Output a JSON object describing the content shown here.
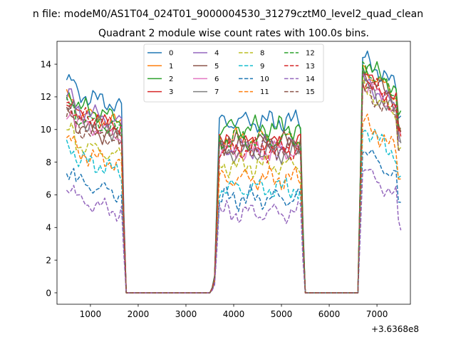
{
  "suptitle": "n file: modeM0/AS1T04_024T01_9000004530_31279cztM0_level2_quad_clean",
  "chart_data": {
    "type": "line",
    "title": "Quadrant 2 module wise count rates with 100.0s bins.",
    "xlabel": "",
    "ylabel": "",
    "x_offset_label": "+3.6368e8",
    "xlim": [
      300,
      7700
    ],
    "ylim": [
      -0.7,
      15.4
    ],
    "x_ticks": [
      1000,
      2000,
      3000,
      4000,
      5000,
      6000,
      7000
    ],
    "x_tick_labels": [
      "1000",
      "2000",
      "3000",
      "4000",
      "5000",
      "6000",
      "7000"
    ],
    "y_ticks": [
      0,
      2,
      4,
      6,
      8,
      10,
      12,
      14
    ],
    "y_tick_labels": [
      "0",
      "2",
      "4",
      "6",
      "8",
      "10",
      "12",
      "14"
    ],
    "legend_position": "upper center",
    "legend_columns": 4,
    "segments": [
      {
        "start": 500,
        "end": 1650
      },
      {
        "start": 3700,
        "end": 5400
      },
      {
        "start": 6700,
        "end": 7500
      }
    ],
    "gap_x": [
      1750,
      1800,
      1900,
      2000,
      2100,
      2200,
      2300,
      2400,
      2500,
      2600,
      2700,
      2800,
      2900,
      3000,
      3100,
      3200,
      3300,
      3400,
      3500,
      5500,
      5600,
      5700,
      5800,
      5900,
      6000,
      6100,
      6200,
      6300,
      6400,
      6500,
      6600
    ],
    "edge_points": [
      {
        "x": 1700,
        "fraction": 0.4
      },
      {
        "x": 3550,
        "fraction": 0.03
      },
      {
        "x": 3600,
        "fraction": 0.1
      },
      {
        "x": 3650,
        "fraction": 0.55
      },
      {
        "x": 5450,
        "fraction": 0.4
      },
      {
        "x": 6650,
        "fraction": 0.5
      }
    ],
    "series": [
      {
        "name": "0",
        "color": "#1f77b4",
        "dash": "solid",
        "levels": [
          12.4,
          10.5,
          13.8
        ]
      },
      {
        "name": "1",
        "color": "#ff7f0e",
        "dash": "solid",
        "levels": [
          11.3,
          9.4,
          13.2
        ]
      },
      {
        "name": "2",
        "color": "#2ca02c",
        "dash": "solid",
        "levels": [
          11.6,
          10.1,
          13.6
        ]
      },
      {
        "name": "3",
        "color": "#d62728",
        "dash": "solid",
        "levels": [
          11.1,
          9.1,
          12.8
        ]
      },
      {
        "name": "4",
        "color": "#9467bd",
        "dash": "solid",
        "levels": [
          11.4,
          8.9,
          12.5
        ]
      },
      {
        "name": "5",
        "color": "#8c564b",
        "dash": "solid",
        "levels": [
          10.4,
          9.2,
          12.9
        ]
      },
      {
        "name": "6",
        "color": "#e377c2",
        "dash": "solid",
        "levels": [
          10.6,
          8.7,
          12.3
        ]
      },
      {
        "name": "7",
        "color": "#7f7f7f",
        "dash": "solid",
        "levels": [
          10.8,
          8.6,
          12.2
        ]
      },
      {
        "name": "8",
        "color": "#bcbd22",
        "dash": "dashed",
        "levels": [
          9.3,
          7.8,
          12.0
        ]
      },
      {
        "name": "9",
        "color": "#17becf",
        "dash": "dashed",
        "levels": [
          8.4,
          6.4,
          9.6
        ]
      },
      {
        "name": "10",
        "color": "#1f77b4",
        "dash": "dashed",
        "levels": [
          7.0,
          5.8,
          8.2
        ]
      },
      {
        "name": "11",
        "color": "#ff7f0e",
        "dash": "dashed",
        "levels": [
          8.8,
          7.0,
          9.9
        ]
      },
      {
        "name": "12",
        "color": "#2ca02c",
        "dash": "dashed",
        "levels": [
          10.9,
          9.4,
          13.3
        ]
      },
      {
        "name": "13",
        "color": "#d62728",
        "dash": "dashed",
        "levels": [
          11.0,
          8.8,
          12.6
        ]
      },
      {
        "name": "14",
        "color": "#9467bd",
        "dash": "dashed",
        "levels": [
          5.9,
          4.9,
          7.0
        ]
      },
      {
        "name": "15",
        "color": "#8c564b",
        "dash": "dashed",
        "levels": [
          10.3,
          8.9,
          11.9
        ]
      }
    ]
  }
}
